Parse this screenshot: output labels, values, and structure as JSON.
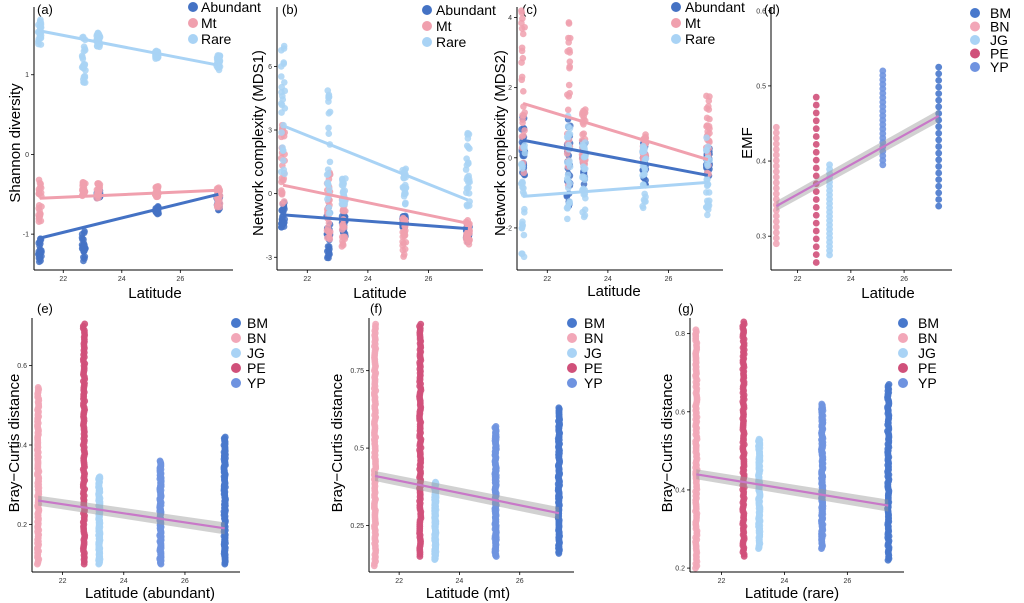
{
  "colors": {
    "Abundant": "#4472c4",
    "Mt": "#f0a0ae",
    "Rare": "#a9d3f5",
    "BM": "#4878cc",
    "BN": "#f2a7b8",
    "JG": "#a9d3f5",
    "PE": "#d0507a",
    "YP": "#6f93e0",
    "fit": "#c878c8"
  },
  "chart_data": [
    {
      "id": "a",
      "type": "scatter",
      "panel_label": "(a)",
      "xlabel": "Latitude",
      "ylabel": "Shannon diversity",
      "xlim": [
        21.0,
        27.8
      ],
      "ylim": [
        -1.45,
        1.85
      ],
      "xticks": [
        22,
        24,
        26
      ],
      "yticks": [
        -1,
        0,
        1
      ],
      "x_groups": [
        21.2,
        22.7,
        23.2,
        25.2,
        27.3
      ],
      "legend": [
        "Abundant",
        "Mt",
        "Rare"
      ],
      "series": [
        {
          "name": "Abundant",
          "ranges": [
            [
              -1.35,
              -1.05
            ],
            [
              -1.35,
              -0.95
            ],
            [
              -0.55,
              -0.45
            ],
            [
              -0.75,
              -0.65
            ],
            [
              -0.7,
              -0.45
            ]
          ],
          "fit": [
            [
              21.2,
              -1.05
            ],
            [
              27.3,
              -0.5
            ]
          ]
        },
        {
          "name": "Mt",
          "ranges": [
            [
              -0.85,
              -0.3
            ],
            [
              -0.55,
              -0.35
            ],
            [
              -0.55,
              -0.35
            ],
            [
              -0.55,
              -0.4
            ],
            [
              -0.7,
              -0.4
            ]
          ],
          "fit": [
            [
              21.2,
              -0.55
            ],
            [
              27.3,
              -0.45
            ]
          ]
        },
        {
          "name": "Rare",
          "ranges": [
            [
              1.35,
              1.7
            ],
            [
              0.85,
              1.5
            ],
            [
              1.35,
              1.55
            ],
            [
              1.2,
              1.3
            ],
            [
              1.05,
              1.25
            ]
          ],
          "fit": [
            [
              21.2,
              1.55
            ],
            [
              27.3,
              1.12
            ]
          ]
        }
      ]
    },
    {
      "id": "b",
      "type": "scatter",
      "panel_label": "(b)",
      "xlabel": "Latitude",
      "ylabel": "Network complexity (MDS1)",
      "xlim": [
        21.0,
        27.8
      ],
      "ylim": [
        -3.6,
        8.8
      ],
      "xticks": [
        22,
        24,
        26
      ],
      "yticks": [
        -3,
        0,
        3,
        6
      ],
      "x_groups": [
        21.2,
        22.7,
        23.2,
        25.2,
        27.3
      ],
      "legend": [
        "Abundant",
        "Mt",
        "Rare"
      ],
      "series": [
        {
          "name": "Abundant",
          "ranges": [
            [
              -1.6,
              -0.4
            ],
            [
              -3.3,
              -0.4
            ],
            [
              -2.0,
              -0.8
            ],
            [
              -1.6,
              -1.0
            ],
            [
              -2.3,
              -1.4
            ]
          ],
          "fit": [
            [
              21.2,
              -1.0
            ],
            [
              27.3,
              -1.65
            ]
          ]
        },
        {
          "name": "Mt",
          "ranges": [
            [
              -0.5,
              3.3
            ],
            [
              -2.2,
              1.0
            ],
            [
              -2.5,
              -0.2
            ],
            [
              -3.0,
              -1.0
            ],
            [
              -2.4,
              -1.2
            ]
          ],
          "fit": [
            [
              21.2,
              0.4
            ],
            [
              27.3,
              -1.4
            ]
          ]
        },
        {
          "name": "Rare",
          "ranges": [
            [
              0.5,
              8.2
            ],
            [
              -1.3,
              5.0
            ],
            [
              -0.5,
              0.8
            ],
            [
              -0.5,
              1.3
            ],
            [
              -0.6,
              2.9
            ]
          ],
          "fit": [
            [
              21.2,
              3.2
            ],
            [
              27.3,
              -0.3
            ]
          ]
        }
      ]
    },
    {
      "id": "c",
      "type": "scatter",
      "panel_label": "(c)",
      "xlabel": "Latitude",
      "ylabel": "Network complexity (MDS2)",
      "xlim": [
        21.0,
        27.8
      ],
      "ylim": [
        -3.2,
        4.3
      ],
      "xticks": [
        22,
        24,
        26
      ],
      "yticks": [
        -2,
        0,
        2,
        4
      ],
      "x_groups": [
        21.2,
        22.7,
        23.2,
        25.2,
        27.3
      ],
      "legend": [
        "Abundant",
        "Mt",
        "Rare"
      ],
      "series": [
        {
          "name": "Abundant",
          "ranges": [
            [
              -0.5,
              1.2
            ],
            [
              -1.4,
              1.3
            ],
            [
              -0.8,
              0.5
            ],
            [
              -0.8,
              0.5
            ],
            [
              -0.6,
              0.3
            ]
          ],
          "fit": [
            [
              21.2,
              0.5
            ],
            [
              27.3,
              -0.5
            ]
          ]
        },
        {
          "name": "Mt",
          "ranges": [
            [
              -0.5,
              4.2
            ],
            [
              -1.0,
              3.9
            ],
            [
              -0.3,
              1.5
            ],
            [
              -0.1,
              0.7
            ],
            [
              -0.5,
              1.9
            ]
          ],
          "fit": [
            [
              21.2,
              1.55
            ],
            [
              27.3,
              -0.05
            ]
          ]
        },
        {
          "name": "Rare",
          "ranges": [
            [
              -3.0,
              0.5
            ],
            [
              -1.8,
              1.4
            ],
            [
              -1.9,
              0.5
            ],
            [
              -1.5,
              0.4
            ],
            [
              -1.7,
              0.6
            ]
          ],
          "fit": [
            [
              21.2,
              -1.1
            ],
            [
              27.3,
              -0.7
            ]
          ]
        }
      ]
    },
    {
      "id": "d",
      "type": "scatter",
      "panel_label": "(d)",
      "xlabel": "Latitude",
      "ylabel": "EMF",
      "xlim": [
        21.0,
        27.8
      ],
      "ylim": [
        0.255,
        0.605
      ],
      "xticks": [
        22,
        24,
        26
      ],
      "yticks": [
        0.3,
        0.4,
        0.5,
        0.6
      ],
      "legend": [
        "BM",
        "BN",
        "JG",
        "PE",
        "YP"
      ],
      "groups": [
        {
          "name": "BN",
          "x": 21.2,
          "range": [
            0.29,
            0.445
          ]
        },
        {
          "name": "PE",
          "x": 22.7,
          "range": [
            0.265,
            0.485
          ]
        },
        {
          "name": "JG",
          "x": 23.2,
          "range": [
            0.275,
            0.395
          ]
        },
        {
          "name": "YP",
          "x": 25.2,
          "range": [
            0.395,
            0.52
          ]
        },
        {
          "name": "BM",
          "x": 27.3,
          "range": [
            0.34,
            0.525
          ]
        }
      ],
      "fit": [
        [
          21.2,
          0.34
        ],
        [
          27.3,
          0.46
        ]
      ]
    },
    {
      "id": "e",
      "type": "scatter",
      "panel_label": "(e)",
      "xlabel": "Latitude (abundant)",
      "ylabel": "Bray−Curtis distance",
      "xlim": [
        21.0,
        27.8
      ],
      "ylim": [
        0.08,
        0.72
      ],
      "xticks": [
        22,
        24,
        26
      ],
      "yticks": [
        0.2,
        0.4,
        0.6
      ],
      "legend": [
        "BM",
        "BN",
        "JG",
        "PE",
        "YP"
      ],
      "groups": [
        {
          "name": "BN",
          "x": 21.2,
          "range": [
            0.1,
            0.545
          ]
        },
        {
          "name": "PE",
          "x": 22.7,
          "range": [
            0.1,
            0.705
          ]
        },
        {
          "name": "JG",
          "x": 23.2,
          "range": [
            0.1,
            0.32
          ]
        },
        {
          "name": "YP",
          "x": 25.2,
          "range": [
            0.1,
            0.36
          ]
        },
        {
          "name": "BM",
          "x": 27.3,
          "range": [
            0.1,
            0.42
          ]
        }
      ],
      "fit": [
        [
          21.2,
          0.26
        ],
        [
          27.3,
          0.19
        ]
      ]
    },
    {
      "id": "f",
      "type": "scatter",
      "panel_label": "(f)",
      "xlabel": "Latitude (mt)",
      "ylabel": "Bray−Curtis distance",
      "xlim": [
        21.0,
        27.8
      ],
      "ylim": [
        0.1,
        0.92
      ],
      "xticks": [
        22,
        24,
        26
      ],
      "yticks": [
        0.25,
        0.5,
        0.75
      ],
      "legend": [
        "BM",
        "BN",
        "JG",
        "PE",
        "YP"
      ],
      "groups": [
        {
          "name": "BN",
          "x": 21.2,
          "range": [
            0.12,
            0.9
          ]
        },
        {
          "name": "PE",
          "x": 22.7,
          "range": [
            0.15,
            0.9
          ]
        },
        {
          "name": "JG",
          "x": 23.2,
          "range": [
            0.14,
            0.39
          ]
        },
        {
          "name": "YP",
          "x": 25.2,
          "range": [
            0.15,
            0.57
          ]
        },
        {
          "name": "BM",
          "x": 27.3,
          "range": [
            0.16,
            0.63
          ]
        }
      ],
      "fit": [
        [
          21.2,
          0.41
        ],
        [
          27.3,
          0.29
        ]
      ]
    },
    {
      "id": "g",
      "type": "scatter",
      "panel_label": "(g)",
      "xlabel": "Latitude (rare)",
      "ylabel": "Bray−Curtis distance",
      "xlim": [
        21.0,
        27.8
      ],
      "ylim": [
        0.19,
        0.84
      ],
      "xticks": [
        22,
        24,
        26
      ],
      "yticks": [
        0.2,
        0.4,
        0.6,
        0.8
      ],
      "legend": [
        "BM",
        "BN",
        "JG",
        "PE",
        "YP"
      ],
      "groups": [
        {
          "name": "BN",
          "x": 21.2,
          "range": [
            0.2,
            0.81
          ]
        },
        {
          "name": "PE",
          "x": 22.7,
          "range": [
            0.23,
            0.83
          ]
        },
        {
          "name": "JG",
          "x": 23.2,
          "range": [
            0.25,
            0.53
          ]
        },
        {
          "name": "YP",
          "x": 25.2,
          "range": [
            0.25,
            0.62
          ]
        },
        {
          "name": "BM",
          "x": 27.3,
          "range": [
            0.22,
            0.67
          ]
        }
      ],
      "fit": [
        [
          21.2,
          0.44
        ],
        [
          27.3,
          0.36
        ]
      ]
    }
  ]
}
